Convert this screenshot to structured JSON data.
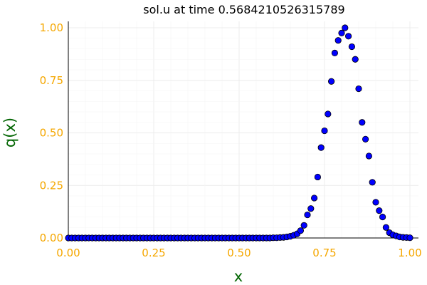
{
  "colors": {
    "tick": "#f5a700",
    "label": "#006400",
    "marker_fill": "#0000ff",
    "marker_stroke": "#000000",
    "grid": "#ececec",
    "axis": "#000000"
  },
  "chart_data": {
    "type": "scatter",
    "title": "sol.u at time 0.5684210526315789",
    "xlabel": "x",
    "ylabel": "q(x)",
    "xlim": [
      0,
      1
    ],
    "ylim": [
      0,
      1
    ],
    "xticks": [
      0.0,
      0.25,
      0.5,
      0.75,
      1.0
    ],
    "xtick_labels": [
      "0.00",
      "0.25",
      "0.50",
      "0.75",
      "1.00"
    ],
    "yticks": [
      0.0,
      0.25,
      0.5,
      0.75,
      1.0
    ],
    "ytick_labels": [
      "0.00",
      "0.25",
      "0.50",
      "0.75",
      "1.00"
    ],
    "grid": true,
    "legend": "none",
    "series": [
      {
        "x": [
          0.0,
          0.01,
          0.02,
          0.03,
          0.04,
          0.05,
          0.06,
          0.07,
          0.08,
          0.09,
          0.1,
          0.11,
          0.12,
          0.13,
          0.14,
          0.15,
          0.16,
          0.17,
          0.18,
          0.19,
          0.2,
          0.21,
          0.22,
          0.23,
          0.24,
          0.25,
          0.26,
          0.27,
          0.28,
          0.29,
          0.3,
          0.31,
          0.32,
          0.33,
          0.34,
          0.35,
          0.36,
          0.37,
          0.38,
          0.39,
          0.4,
          0.41,
          0.42,
          0.43,
          0.44,
          0.45,
          0.46,
          0.47,
          0.48,
          0.49,
          0.5,
          0.51,
          0.52,
          0.53,
          0.54,
          0.55,
          0.56,
          0.57,
          0.58,
          0.59,
          0.6,
          0.61,
          0.62,
          0.63,
          0.64,
          0.65,
          0.66,
          0.67,
          0.68,
          0.69,
          0.7,
          0.71,
          0.72,
          0.73,
          0.74,
          0.75,
          0.76,
          0.77,
          0.78,
          0.79,
          0.8,
          0.81,
          0.82,
          0.83,
          0.84,
          0.85,
          0.86,
          0.87,
          0.88,
          0.89,
          0.9,
          0.91,
          0.92,
          0.93,
          0.94,
          0.95,
          0.96,
          0.97,
          0.98,
          0.99,
          1.0
        ],
        "y": [
          0,
          0,
          0,
          0,
          0,
          0,
          0,
          0,
          0,
          0,
          0,
          0,
          0,
          0,
          0,
          0,
          0,
          0,
          0,
          0,
          0,
          0,
          0,
          0,
          0,
          0,
          0,
          0,
          0,
          0,
          0,
          0,
          0,
          0,
          0,
          0,
          0,
          0,
          0,
          0,
          0,
          0,
          0,
          0,
          0,
          0,
          0,
          0,
          0,
          0,
          0,
          0,
          0,
          0,
          0,
          0,
          0,
          0,
          0,
          0,
          0.001,
          0.001,
          0.002,
          0.003,
          0.005,
          0.008,
          0.013,
          0.02,
          0.035,
          0.06,
          0.11,
          0.14,
          0.19,
          0.29,
          0.43,
          0.51,
          0.59,
          0.745,
          0.88,
          0.94,
          0.975,
          1.0,
          0.96,
          0.91,
          0.85,
          0.71,
          0.55,
          0.47,
          0.39,
          0.265,
          0.17,
          0.13,
          0.1,
          0.05,
          0.025,
          0.015,
          0.01,
          0.005,
          0.003,
          0.002,
          0.001
        ]
      }
    ]
  }
}
